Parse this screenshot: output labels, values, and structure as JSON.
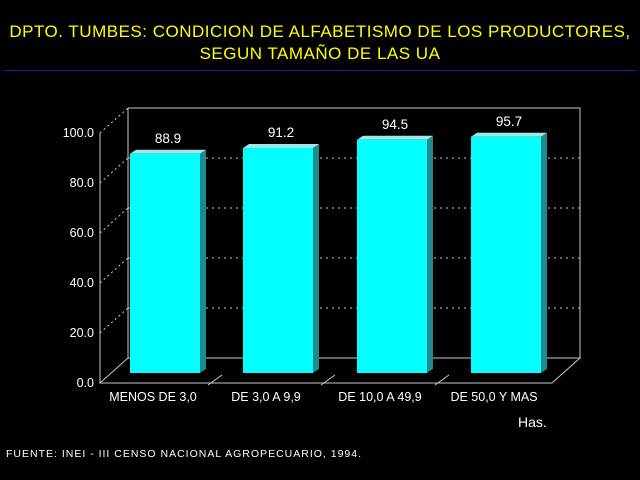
{
  "chart_data": {
    "type": "bar",
    "title": "DPTO. TUMBES: CONDICION DE ALFABETISMO DE LOS PRODUCTORES,",
    "subtitle": "SEGUN TAMAÑO DE LAS UA",
    "categories": [
      "MENOS DE 3,0",
      "DE 3,0 A 9,9",
      "DE 10,0 A 49,9",
      "DE 50,0 Y MAS"
    ],
    "values": [
      88.9,
      91.2,
      94.5,
      95.7
    ],
    "data_labels": [
      "88.9",
      "91.2",
      "94.5",
      "95.7"
    ],
    "y_ticks": [
      "0.0",
      "20.0",
      "40.0",
      "60.0",
      "80.0",
      "100.0"
    ],
    "ylim": [
      0,
      100
    ],
    "xlabel": "Has.",
    "ylabel": "",
    "grid": true,
    "three_d": true
  },
  "source": "FUENTE: INEI - III CENSO NACIONAL AGROPECUARIO, 1994.",
  "colors": {
    "background": "#000000",
    "title": "#ffff00",
    "bar_front": "#00ffff",
    "bar_top": "#9fe8e8",
    "bar_side": "#1e8c8c",
    "text": "#ffffff",
    "axis": "#c8c8c8",
    "rule": "#1e1eb4"
  }
}
